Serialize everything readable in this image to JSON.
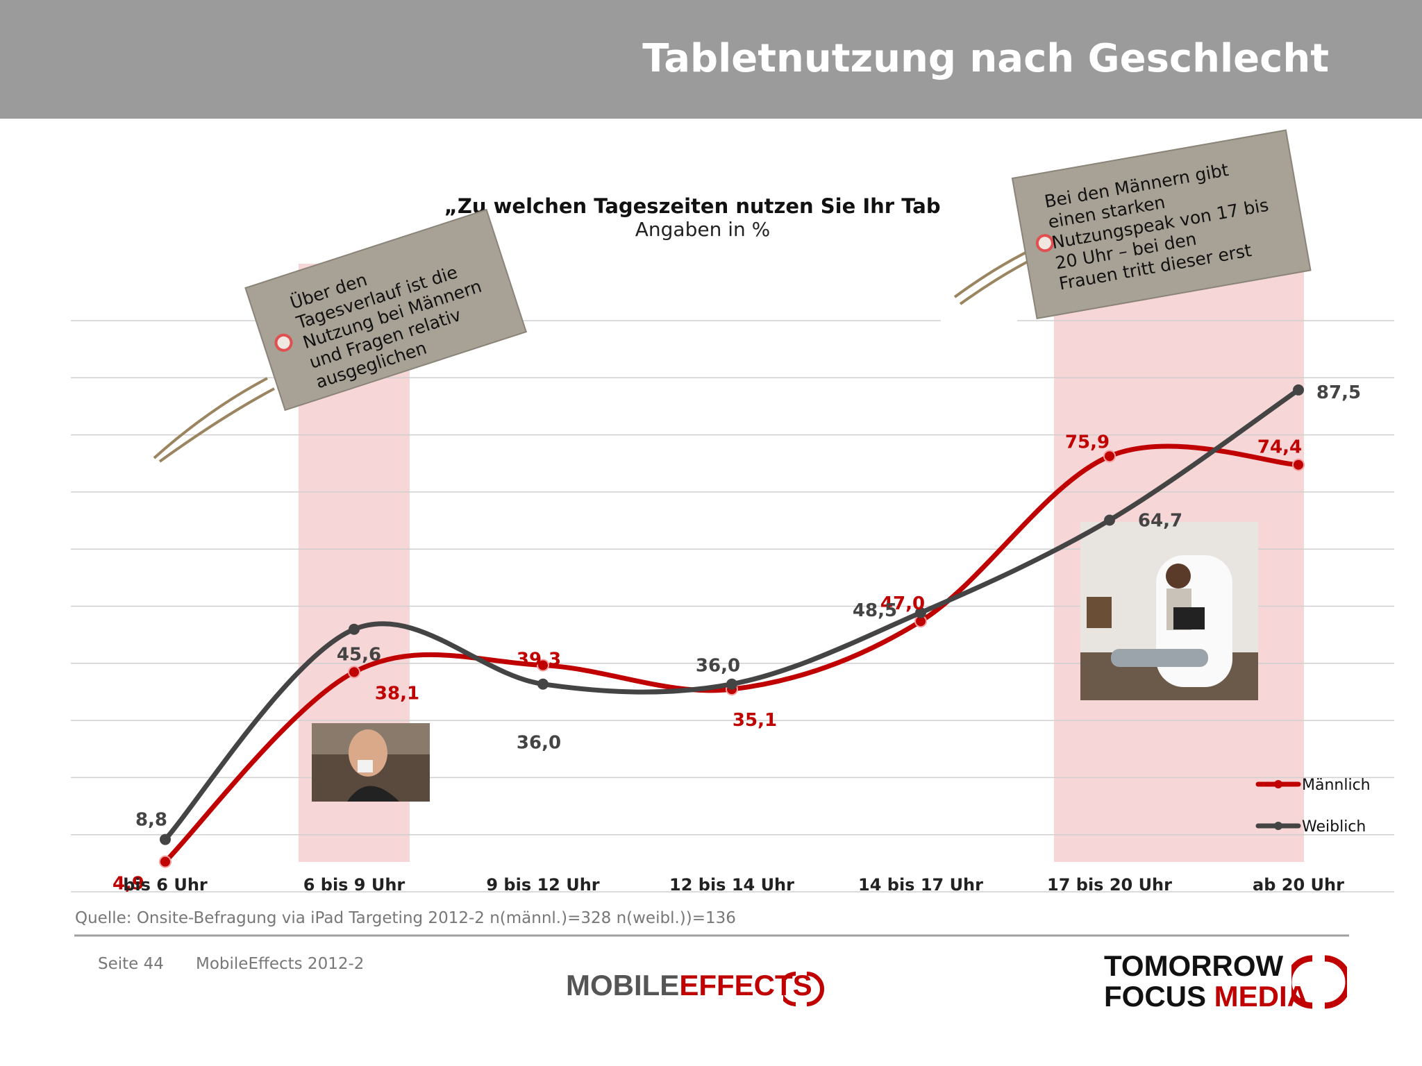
{
  "header": {
    "title": "Tabletnutzung nach Geschlecht"
  },
  "chart_data": {
    "type": "line",
    "title": "„Zu welchen Tageszeiten nutzen Sie Ihr Table",
    "subtitle": "Angaben in %",
    "categories": [
      "bis 6 Uhr",
      "6 bis 9 Uhr",
      "9 bis 12 Uhr",
      "12 bis 14 Uhr",
      "14 bis 17 Uhr",
      "17 bis 20 Uhr",
      "ab 20 Uhr"
    ],
    "series": [
      {
        "name": "Männlich",
        "color": "#c00000",
        "values": [
          4.9,
          38.1,
          39.3,
          35.1,
          47.0,
          75.9,
          74.4
        ],
        "labels": [
          "4,9",
          "38,1",
          "39,3",
          "35,1",
          "47,0",
          "75,9",
          "74,4"
        ]
      },
      {
        "name": "Weiblich",
        "color": "#444444",
        "values": [
          8.8,
          45.6,
          36.0,
          36.0,
          48.5,
          64.7,
          87.5
        ],
        "labels": [
          "8,8",
          "45,6",
          "36,0",
          "36,0",
          "48,5",
          "64,7",
          "87,5"
        ]
      }
    ],
    "ylim": [
      0,
      100
    ],
    "grid": true,
    "legend": "bottom-right",
    "highlighted_categories": [
      "6 bis 9 Uhr",
      "17 bis 20 Uhr",
      "ab 20 Uhr"
    ]
  },
  "tags": {
    "left": "Über den Tagesverlauf ist die Nutzung bei Männern und Fragen relativ ausgeglichen",
    "right": "Bei den Männern gibt einen starken Nutzungspeak von 17 bis 20 Uhr – bei den Frauen tritt dieser erst später ein"
  },
  "source": "Quelle: Onsite-Befragung via iPad Targeting 2012-2 n(männl.)=328 n(weibl.))=136",
  "footer": {
    "page": "Seite 44",
    "study": "MobileEffects 2012-2",
    "logo_mobile": "MOBILE",
    "logo_effects": "EFFECTS",
    "logo_tomorrow": "TOMORROW",
    "logo_focus": "FOCUS",
    "logo_media": "MEDIA"
  },
  "colors": {
    "accent_red": "#c00000",
    "highlight": "#f7d6d8",
    "header_gray": "#9b9b9b"
  }
}
